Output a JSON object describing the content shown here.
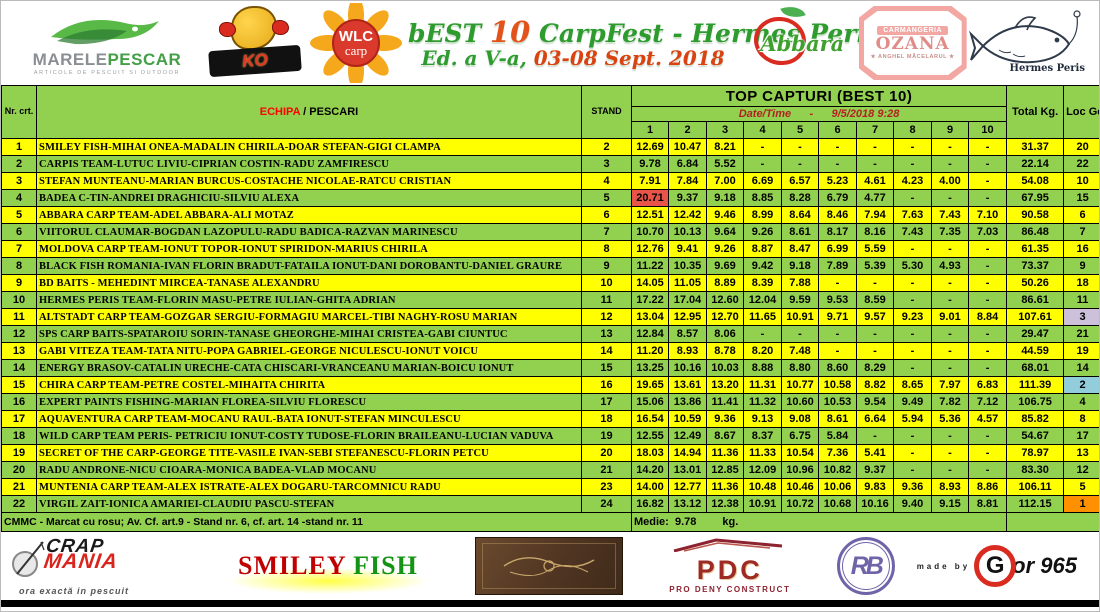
{
  "title": {
    "part_green1": "bEST",
    "part_num": "10",
    "part_green2": "CarpFest - Hermes Peris",
    "line2_green": "Ed. a V-a,",
    "line2_red": "03-08 Sept. 2018"
  },
  "colors": {
    "row_yellow": "#FFFF00",
    "row_green": "#92D050",
    "marked_red": "#E9544A",
    "loc1_orange": "#FF9000",
    "loc2_blue": "#92CDDC",
    "loc3_lavender": "#CCC0DA",
    "echipa_red": "#FF0000",
    "datetime_red": "#B22222"
  },
  "logos": {
    "marele": {
      "main1": "MARELE",
      "main2": "PESCAR",
      "sub": "ARTICOLE DE PESCUIT SI OUTDOOR"
    },
    "ko": {
      "label": "KO"
    },
    "wlc": {
      "line1": "WLC",
      "line2": "carp"
    },
    "abbara": {
      "name": "Abbara"
    },
    "ozana": {
      "line1": "CARMANGERIA",
      "line2": "OZANA",
      "sub": "★ ANGHEL MĂCELARUL ★"
    },
    "hermes": {
      "name": "Hermes Peris"
    },
    "crap_mania": {
      "line1": "CRAP",
      "line2": "MANIA",
      "tagline": "ora exactă in pescuit"
    },
    "smiley": {
      "red": "SMILEY",
      "green": " FISH"
    },
    "pdc": {
      "abbr": "PDC",
      "sub": "PRO DENY CONSTRUCT"
    },
    "rb": {
      "label": "RB"
    },
    "gor": {
      "made_by": "made by",
      "g": "G",
      "rest": "or 965"
    }
  },
  "table": {
    "header": {
      "nr": "Nr. crt.",
      "echipa_red": "ECHIPA",
      "echipa_black": " / PESCARI",
      "stand": "STAND",
      "group_title": "TOP CAPTURI (BEST 10)",
      "datetime_label": "Date/Time",
      "datetime_dash": "-",
      "datetime_value": "9/5/2018 9:28",
      "catch_cols": [
        "1",
        "2",
        "3",
        "4",
        "5",
        "6",
        "7",
        "8",
        "9",
        "10"
      ],
      "total": "Total Kg.",
      "loc": "Loc Gen."
    },
    "rows": [
      {
        "nr": "1",
        "team": "SMILEY FISH-MIHAI ONEA-MADALIN CHIRILA-DOAR STEFAN-GIGI CLAMPA",
        "stand": "2",
        "catches": [
          "12.69",
          "10.47",
          "8.21",
          "-",
          "-",
          "-",
          "-",
          "-",
          "-",
          "-"
        ],
        "total": "31.37",
        "loc": "20",
        "marked_catch": null,
        "loc_highlight": null
      },
      {
        "nr": "2",
        "team": "CARPIS TEAM-LUTUC LIVIU-CIPRIAN COSTIN-RADU ZAMFIRESCU",
        "stand": "3",
        "catches": [
          "9.78",
          "6.84",
          "5.52",
          "-",
          "-",
          "-",
          "-",
          "-",
          "-",
          "-"
        ],
        "total": "22.14",
        "loc": "22",
        "marked_catch": null,
        "loc_highlight": null
      },
      {
        "nr": "3",
        "team": "STEFAN MUNTEANU-MARIAN BURCUS-COSTACHE NICOLAE-RATCU CRISTIAN",
        "stand": "4",
        "catches": [
          "7.91",
          "7.84",
          "7.00",
          "6.69",
          "6.57",
          "5.23",
          "4.61",
          "4.23",
          "4.00",
          "-"
        ],
        "total": "54.08",
        "loc": "10",
        "marked_catch": null,
        "loc_highlight": null
      },
      {
        "nr": "4",
        "team": "BADEA C-TIN-ANDREI DRAGHICIU-SILVIU ALEXA",
        "stand": "5",
        "catches": [
          "20.71",
          "9.37",
          "9.18",
          "8.85",
          "8.28",
          "6.79",
          "4.77",
          "-",
          "-",
          "-"
        ],
        "total": "67.95",
        "loc": "15",
        "marked_catch": 1,
        "loc_highlight": null
      },
      {
        "nr": "5",
        "team": "ABBARA  CARP TEAM-ADEL ABBARA-ALI MOTAZ",
        "stand": "6",
        "catches": [
          "12.51",
          "12.42",
          "9.46",
          "8.99",
          "8.64",
          "8.46",
          "7.94",
          "7.63",
          "7.43",
          "7.10"
        ],
        "total": "90.58",
        "loc": "6",
        "marked_catch": null,
        "loc_highlight": null
      },
      {
        "nr": "6",
        "team": "VIITORUL CLAUMAR-BOGDAN LAZOPULU-RADU BADICA-RAZVAN MARINESCU",
        "stand": "7",
        "catches": [
          "10.70",
          "10.13",
          "9.64",
          "9.26",
          "8.61",
          "8.17",
          "8.16",
          "7.43",
          "7.35",
          "7.03"
        ],
        "total": "86.48",
        "loc": "7",
        "marked_catch": null,
        "loc_highlight": null
      },
      {
        "nr": "7",
        "team": "MOLDOVA CARP TEAM-IONUT TOPOR-IONUT SPIRIDON-MARIUS CHIRILA",
        "stand": "8",
        "catches": [
          "12.76",
          "9.41",
          "9.26",
          "8.87",
          "8.47",
          "6.99",
          "5.59",
          "-",
          "-",
          "-"
        ],
        "total": "61.35",
        "loc": "16",
        "marked_catch": null,
        "loc_highlight": null
      },
      {
        "nr": "8",
        "team": "BLACK FISH ROMANIA-IVAN FLORIN BRADUT-FATAILA IONUT-DANI DOROBANTU-DANIEL GRAURE",
        "stand": "9",
        "catches": [
          "11.22",
          "10.35",
          "9.69",
          "9.42",
          "9.18",
          "7.89",
          "5.39",
          "5.30",
          "4.93",
          "-"
        ],
        "total": "73.37",
        "loc": "9",
        "marked_catch": null,
        "loc_highlight": null
      },
      {
        "nr": "9",
        "team": "BD BAITS - MEHEDINT MIRCEA-TANASE ALEXANDRU",
        "stand": "10",
        "catches": [
          "14.05",
          "11.05",
          "8.89",
          "8.39",
          "7.88",
          "-",
          "-",
          "-",
          "-",
          "-"
        ],
        "total": "50.26",
        "loc": "18",
        "marked_catch": null,
        "loc_highlight": null
      },
      {
        "nr": "10",
        "team": "HERMES PERIS TEAM-FLORIN MASU-PETRE IULIAN-GHITA ADRIAN",
        "stand": "11",
        "catches": [
          "17.22",
          "17.04",
          "12.60",
          "12.04",
          "9.59",
          "9.53",
          "8.59",
          "-",
          "-",
          "-"
        ],
        "total": "86.61",
        "loc": "11",
        "marked_catch": null,
        "loc_highlight": null
      },
      {
        "nr": "11",
        "team": "ALTSTADT CARP TEAM-GOZGAR SERGIU-FORMAGIU MARCEL-TIBI NAGHY-ROSU MARIAN",
        "stand": "12",
        "catches": [
          "13.04",
          "12.95",
          "12.70",
          "11.65",
          "10.91",
          "9.71",
          "9.57",
          "9.23",
          "9.01",
          "8.84"
        ],
        "total": "107.61",
        "loc": "3",
        "marked_catch": null,
        "loc_highlight": "third"
      },
      {
        "nr": "12",
        "team": " SPS CARP BAITS-SPATAROIU SORIN-TANASE GHEORGHE-MIHAI CRISTEA-GABI CIUNTUC",
        "stand": "13",
        "catches": [
          "12.84",
          "8.57",
          "8.06",
          "-",
          "-",
          "-",
          "-",
          "-",
          "-",
          "-"
        ],
        "total": "29.47",
        "loc": "21",
        "marked_catch": null,
        "loc_highlight": null
      },
      {
        "nr": "13",
        "team": "GABI VITEZA TEAM-TATA NITU-POPA GABRIEL-GEORGE NICULESCU-IONUT VOICU",
        "stand": "14",
        "catches": [
          "11.20",
          "8.93",
          "8.78",
          "8.20",
          "7.48",
          "-",
          "-",
          "-",
          "-",
          "-"
        ],
        "total": "44.59",
        "loc": "19",
        "marked_catch": null,
        "loc_highlight": null
      },
      {
        "nr": "14",
        "team": "ENERGY BRASOV-CATALIN URECHE-CATA CHISCARI-VRANCEANU MARIAN-BOICU IONUT",
        "stand": "15",
        "catches": [
          "13.25",
          "10.16",
          "10.03",
          "8.88",
          "8.80",
          "8.60",
          "8.29",
          "-",
          "-",
          "-"
        ],
        "total": "68.01",
        "loc": "14",
        "marked_catch": null,
        "loc_highlight": null
      },
      {
        "nr": "15",
        "team": "CHIRA CARP TEAM-PETRE COSTEL-MIHAITA CHIRITA",
        "stand": "16",
        "catches": [
          "19.65",
          "13.61",
          "13.20",
          "11.31",
          "10.77",
          "10.58",
          "8.82",
          "8.65",
          "7.97",
          "6.83"
        ],
        "total": "111.39",
        "loc": "2",
        "marked_catch": null,
        "loc_highlight": "second"
      },
      {
        "nr": "16",
        "team": "EXPERT PAINTS FISHING-MARIAN FLOREA-SILVIU FLORESCU",
        "stand": "17",
        "catches": [
          "15.06",
          "13.86",
          "11.41",
          "11.32",
          "10.60",
          "10.53",
          "9.54",
          "9.49",
          "7.82",
          "7.12"
        ],
        "total": "106.75",
        "loc": "4",
        "marked_catch": null,
        "loc_highlight": null
      },
      {
        "nr": "17",
        "team": "AQUAVENTURA CARP TEAM-MOCANU RAUL-BATA IONUT-STEFAN MINCULESCU",
        "stand": "18",
        "catches": [
          "16.54",
          "10.59",
          "9.36",
          "9.13",
          "9.08",
          "8.61",
          "6.64",
          "5.94",
          "5.36",
          "4.57"
        ],
        "total": "85.82",
        "loc": "8",
        "marked_catch": null,
        "loc_highlight": null
      },
      {
        "nr": "18",
        "team": "WILD CARP TEAM PERIS- PETRICIU IONUT-COSTY TUDOSE-FLORIN BRAILEANU-LUCIAN VADUVA",
        "stand": "19",
        "catches": [
          "12.55",
          "12.49",
          "8.67",
          "8.37",
          "6.75",
          "5.84",
          "-",
          "-",
          "-",
          "-"
        ],
        "total": "54.67",
        "loc": "17",
        "marked_catch": null,
        "loc_highlight": null
      },
      {
        "nr": "19",
        "team": "SECRET OF THE CARP-GEORGE TITE-VASILE IVAN-SEBI STEFANESCU-FLORIN PETCU",
        "stand": "20",
        "catches": [
          "18.03",
          "14.94",
          "11.36",
          "11.33",
          "10.54",
          "7.36",
          "5.41",
          "-",
          "-",
          "-"
        ],
        "total": "78.97",
        "loc": "13",
        "marked_catch": null,
        "loc_highlight": null
      },
      {
        "nr": "20",
        "team": "RADU ANDRONE-NICU CIOARA-MONICA BADEA-VLAD MOCANU",
        "stand": "21",
        "catches": [
          "14.20",
          "13.01",
          "12.85",
          "12.09",
          "10.96",
          "10.82",
          "9.37",
          "-",
          "-",
          "-"
        ],
        "total": "83.30",
        "loc": "12",
        "marked_catch": null,
        "loc_highlight": null
      },
      {
        "nr": "21",
        "team": "MUNTENIA CARP TEAM-ALEX ISTRATE-ALEX DOGARU-TARCOMNICU RADU",
        "stand": "23",
        "catches": [
          "14.00",
          "12.77",
          "11.36",
          "10.48",
          "10.46",
          "10.06",
          "9.83",
          "9.36",
          "8.93",
          "8.86"
        ],
        "total": "106.11",
        "loc": "5",
        "marked_catch": null,
        "loc_highlight": null
      },
      {
        "nr": "22",
        "team": "VIRGIL ZAIT-IONICA AMARIEI-CLAUDIU PASCU-STEFAN",
        "stand": "24",
        "catches": [
          "16.82",
          "13.12",
          "12.38",
          "10.91",
          "10.72",
          "10.68",
          "10.16",
          "9.40",
          "9.15",
          "8.81"
        ],
        "total": "112.15",
        "loc": "1",
        "marked_catch": null,
        "loc_highlight": "first"
      }
    ],
    "footer": {
      "note": "CMMC - Marcat cu rosu;  Av. Cf. art.9 - Stand nr. 6, cf. art. 14 -stand  nr. 11",
      "medie_label": "Medie:",
      "medie_value": "9.78",
      "medie_unit": "kg."
    }
  }
}
